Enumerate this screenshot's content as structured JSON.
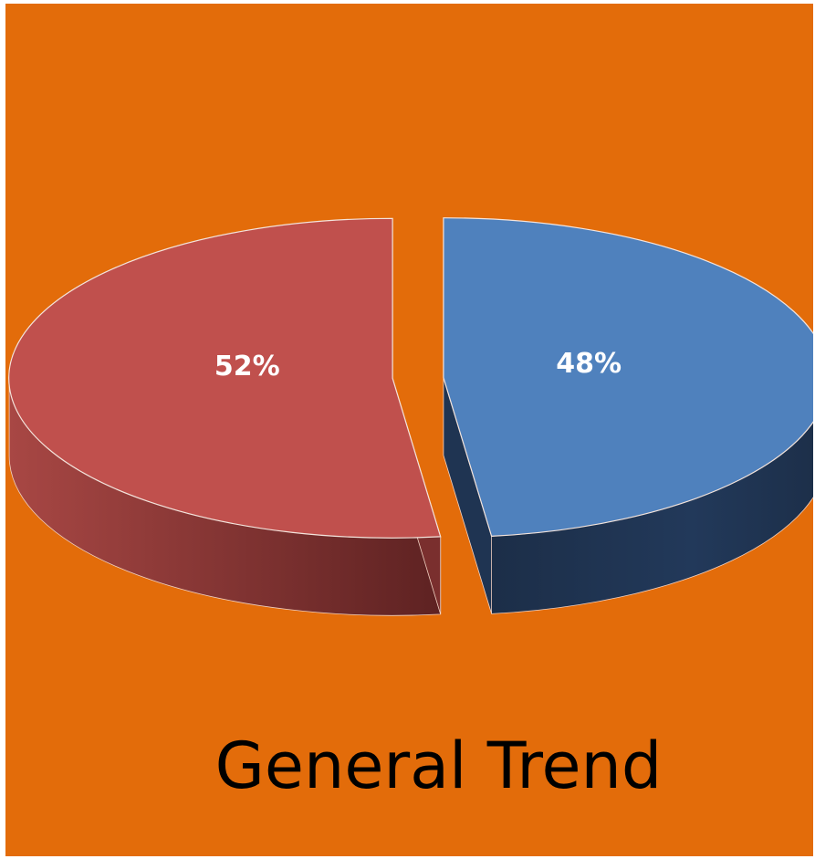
{
  "background_color": "#E36C0A",
  "chart_data": {
    "type": "pie",
    "title": "General Trend",
    "style": "3d",
    "slices": [
      {
        "value": 48,
        "label": "48%",
        "color": "#4F81BD",
        "side_color": "#1F3452"
      },
      {
        "value": 52,
        "label": "52%",
        "color": "#C0504D",
        "side_color": "#7A2F2E"
      }
    ]
  }
}
